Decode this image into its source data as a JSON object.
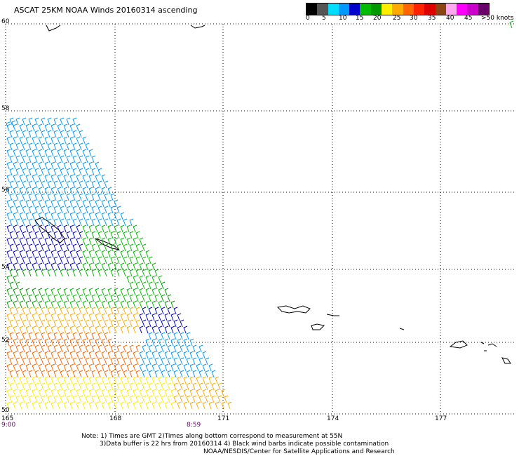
{
  "title": "ASCAT 25KM NOAA Winds 20160314 ascending",
  "legend": {
    "colors": [
      "#000000",
      "#555555",
      "#00ddff",
      "#0099ff",
      "#0000cc",
      "#00bb00",
      "#009900",
      "#ffee00",
      "#ffaa00",
      "#ff6600",
      "#ff2200",
      "#dd0000",
      "#8b4513",
      "#ffaaee",
      "#ff00ff",
      "#cc00cc",
      "#6a006a"
    ],
    "labels": [
      "0",
      "5",
      "10",
      "15",
      "20",
      "25",
      "30",
      "35",
      "40",
      "45",
      ">50 knots"
    ]
  },
  "axes": {
    "latitude_labels": [
      "60",
      "58",
      "56",
      "54",
      "52",
      "50"
    ],
    "longitude_labels": [
      "165",
      "168",
      "171",
      "174",
      "177"
    ]
  },
  "pass_times": [
    "9:00",
    "8:59"
  ],
  "notes": [
    "Note: 1) Times are GMT 2)Times along bottom correspond to measurement at 55N",
    "3)Data buffer is 22 hrs from 20160314 4) Black wind barbs indicate possible contamination",
    "NOAA/NESDIS/Center for Satellite Applications and Research"
  ]
}
